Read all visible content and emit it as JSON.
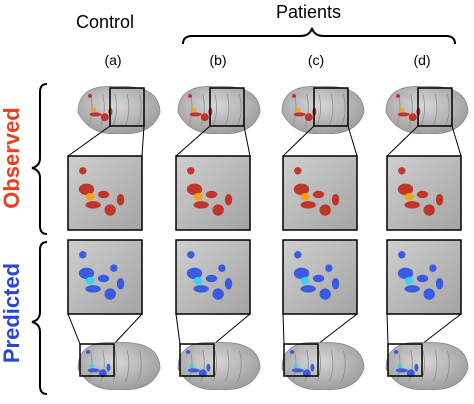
{
  "header": {
    "control": "Control",
    "patients": "Patients"
  },
  "columns": [
    {
      "label": "(a)"
    },
    {
      "label": "(b)"
    },
    {
      "label": "(c)"
    },
    {
      "label": "(d)"
    }
  ],
  "rows": {
    "observed": {
      "label": "Observed",
      "color": "#e8401c"
    },
    "predicted": {
      "label": "Predicted",
      "color": "#2a45d6"
    }
  },
  "colors": {
    "brain": "#bdbdbd",
    "observed_activation": "#c0281a",
    "observed_hot": "#f6a21a",
    "predicted_activation": "#2b50e6",
    "predicted_hot": "#3fd0f0"
  }
}
